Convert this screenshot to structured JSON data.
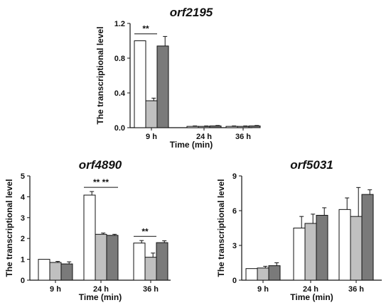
{
  "chart_data": [
    {
      "type": "bar",
      "title": "orf2195",
      "ylabel": "The transcriptional level",
      "xlabel": "Time (min)",
      "categories": [
        "9 h",
        "24 h",
        "36 h"
      ],
      "ylim": [
        0,
        1.2
      ],
      "yticks": [
        "0.0",
        "0.4",
        "0.8",
        "1.2"
      ],
      "series": [
        {
          "values": [
            1.0,
            0.015,
            0.015
          ],
          "errors": [
            0.0,
            0.005,
            0.005
          ],
          "color": "#ffffff"
        },
        {
          "values": [
            0.31,
            0.015,
            0.015
          ],
          "errors": [
            0.03,
            0.005,
            0.005
          ],
          "color": "#c0c0c0"
        },
        {
          "values": [
            0.94,
            0.02,
            0.02
          ],
          "errors": [
            0.11,
            0.005,
            0.005
          ],
          "color": "#7a7a7a"
        }
      ],
      "annotations": [
        {
          "text": "**",
          "category": 0,
          "from": 0,
          "to": 1,
          "y": 1.08
        }
      ]
    },
    {
      "type": "bar",
      "title": "orf4890",
      "ylabel": "The transcriptional level",
      "xlabel": "Time (min)",
      "categories": [
        "9 h",
        "24 h",
        "36 h"
      ],
      "ylim": [
        0,
        5
      ],
      "yticks": [
        "0",
        "1",
        "2",
        "3",
        "4",
        "5"
      ],
      "series": [
        {
          "values": [
            1.0,
            4.08,
            1.78
          ],
          "errors": [
            0.0,
            0.17,
            0.12
          ],
          "color": "#ffffff"
        },
        {
          "values": [
            0.85,
            2.2,
            1.1
          ],
          "errors": [
            0.05,
            0.06,
            0.2
          ],
          "color": "#c0c0c0"
        },
        {
          "values": [
            0.78,
            2.15,
            1.8
          ],
          "errors": [
            0.1,
            0.05,
            0.09
          ],
          "color": "#7a7a7a"
        }
      ],
      "annotations": [
        {
          "text": "** **",
          "category": 1,
          "from": 0,
          "to": 2,
          "y": 4.45
        },
        {
          "text": "**",
          "category": 2,
          "from": 0,
          "to": 1,
          "y": 2.1
        }
      ]
    },
    {
      "type": "bar",
      "title": "orf5031",
      "ylabel": "The transcriptional level",
      "xlabel": "Time (min)",
      "categories": [
        "9 h",
        "24 h",
        "36 h"
      ],
      "ylim": [
        0,
        9
      ],
      "yticks": [
        "0",
        "3",
        "6",
        "9"
      ],
      "series": [
        {
          "values": [
            1.0,
            4.5,
            6.1
          ],
          "errors": [
            0.0,
            1.0,
            1.0
          ],
          "color": "#ffffff"
        },
        {
          "values": [
            1.05,
            4.9,
            5.5
          ],
          "errors": [
            0.15,
            0.8,
            2.5
          ],
          "color": "#c0c0c0"
        },
        {
          "values": [
            1.25,
            5.6,
            7.4
          ],
          "errors": [
            0.25,
            0.65,
            0.4
          ],
          "color": "#7a7a7a"
        }
      ],
      "annotations": []
    }
  ]
}
